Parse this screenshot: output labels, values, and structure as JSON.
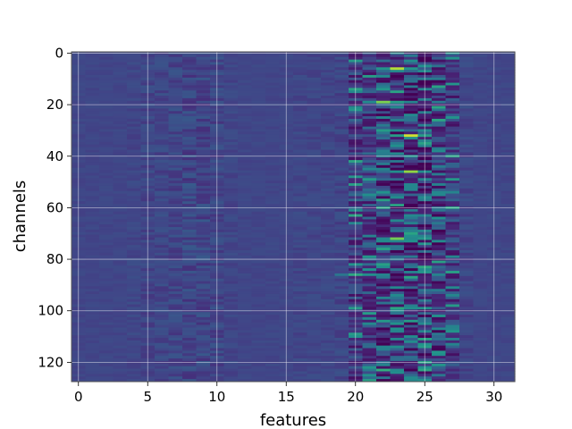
{
  "chart_data": {
    "type": "heatmap",
    "title": "",
    "xlabel": "features",
    "ylabel": "channels",
    "x_range": [
      -0.5,
      31.5
    ],
    "y_range": [
      127.5,
      -0.5
    ],
    "n_columns": 32,
    "n_rows": 128,
    "x_ticks": [
      0,
      5,
      10,
      15,
      20,
      25,
      30
    ],
    "y_ticks": [
      0,
      20,
      40,
      60,
      80,
      100,
      120
    ],
    "grid": true,
    "colormap": "viridis",
    "background_value": 0.26,
    "column_profile": [
      0.26,
      0.26,
      0.26,
      0.26,
      0.27,
      0.28,
      0.28,
      0.29,
      0.3,
      0.3,
      0.29,
      0.27,
      0.26,
      0.26,
      0.26,
      0.26,
      0.27,
      0.27,
      0.27,
      0.28,
      0.34,
      0.36,
      0.42,
      0.44,
      0.45,
      0.44,
      0.4,
      0.33,
      0.28,
      0.26,
      0.26,
      0.26
    ],
    "highlights": [
      {
        "x": 23,
        "y": 6,
        "value": 0.92
      },
      {
        "x": 22,
        "y": 19,
        "value": 0.85
      },
      {
        "x": 24,
        "y": 32,
        "value": 0.95
      },
      {
        "x": 24,
        "y": 46,
        "value": 0.88
      },
      {
        "x": 21,
        "y": 55,
        "value": 0.62
      },
      {
        "x": 23,
        "y": 72,
        "value": 0.84
      },
      {
        "x": 20,
        "y": 86,
        "value": 0.7
      },
      {
        "x": 24,
        "y": 104,
        "value": 0.66
      },
      {
        "x": 22,
        "y": 123,
        "value": 0.72
      }
    ],
    "colors": {
      "grid": "#ffffff",
      "spine": "#333333",
      "low": "#440154",
      "mid": "#31688e",
      "high": "#fde725"
    }
  }
}
